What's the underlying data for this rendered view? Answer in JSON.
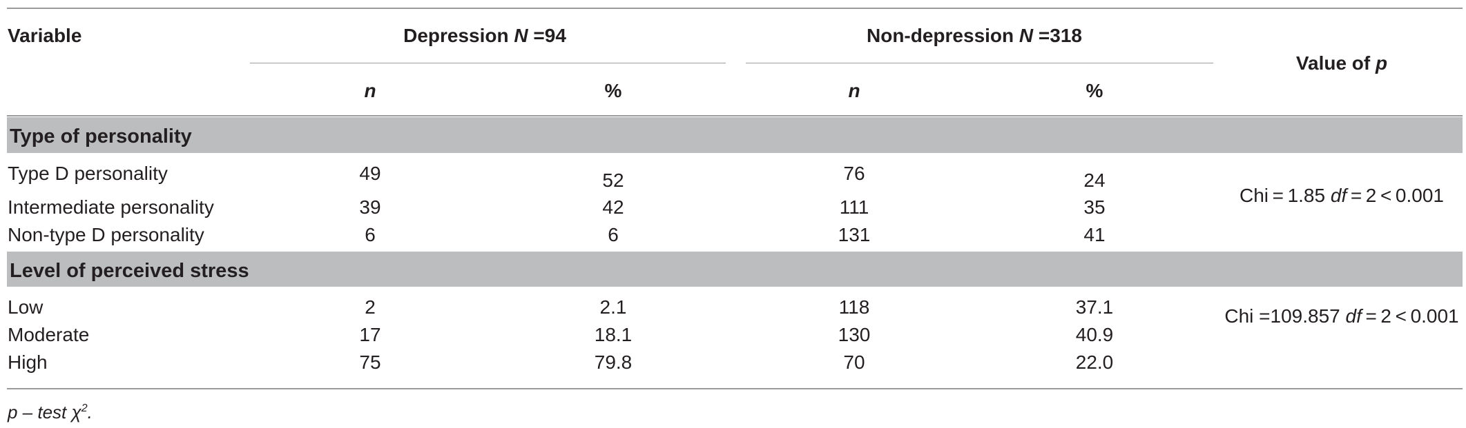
{
  "table": {
    "header": {
      "variable": "Variable",
      "depression": {
        "label": "Depression ",
        "n_symbol": "N",
        "n_value": " =94"
      },
      "non_depression": {
        "label": "Non-depression ",
        "n_symbol": "N",
        "n_value": " =318"
      },
      "value_of_p": {
        "label": "Value of ",
        "p_symbol": "p"
      },
      "sub": {
        "n": "n",
        "pct": "%"
      }
    },
    "sections": [
      {
        "title": "Type of personality",
        "rows": [
          {
            "label": "Type D personality",
            "dep_n": "49",
            "dep_pct": "52",
            "nondep_n": "76",
            "nondep_pct": "24"
          },
          {
            "label": "Intermediate personality",
            "dep_n": "39",
            "dep_pct": "42",
            "nondep_n": "111",
            "nondep_pct": "35"
          },
          {
            "label": "Non-type D personality",
            "dep_n": "6",
            "dep_pct": "6",
            "nondep_n": "131",
            "nondep_pct": "41"
          }
        ],
        "p_value": {
          "prefix": "Chi = 1.85 ",
          "df": "df",
          "suffix": " = 2 < 0.001"
        }
      },
      {
        "title": "Level of perceived stress",
        "rows": [
          {
            "label": "Low",
            "dep_n": "2",
            "dep_pct": "2.1",
            "nondep_n": "118",
            "nondep_pct": "37.1"
          },
          {
            "label": "Moderate",
            "dep_n": "17",
            "dep_pct": "18.1",
            "nondep_n": "130",
            "nondep_pct": "40.9"
          },
          {
            "label": "High",
            "dep_n": "75",
            "dep_pct": "79.8",
            "nondep_n": "70",
            "nondep_pct": "22.0"
          }
        ],
        "p_value": {
          "prefix": "Chi =109.857 ",
          "df": "df",
          "suffix": " = 2 < 0.001"
        }
      }
    ],
    "footnote": {
      "text": "p – test χ",
      "sup": "2",
      "end": "."
    }
  }
}
